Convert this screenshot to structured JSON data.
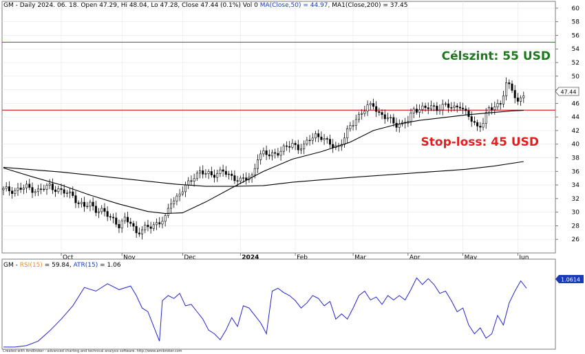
{
  "price_panel": {
    "header_prefix": "GM - Daily 2024. 06. 18. Open 47.29, Hi 48.04, Lo 47.28, Close 47.44 (0.1%) Vol 0 ",
    "header_ma50": "MA(Close,50) = 44.97, ",
    "header_ma200": "MA1(Close,200) = 37.45",
    "target_label": "Célszint: 55 USD",
    "stop_label": "Stop-loss: 45 USD",
    "last_price_badge": "47.44"
  },
  "indicator_panel": {
    "header_prefix": "GM - ",
    "header_rsi": "RSI(15)",
    "header_rsi_val": " = 59.84, ",
    "header_atr": "ATR(15)",
    "header_atr_val": " = 1.06",
    "value_badge": "1.0614"
  },
  "footer": "Created with AmiBroker - advanced charting and technical analysis software. http://www.amibroker.com",
  "colors": {
    "candle": "#000000",
    "ma": "#000000",
    "target_line": "#1a7a1a",
    "stop_line": "#e02020",
    "rsi_line": "#2222cc",
    "atr_badge": "#1a3ab8",
    "grid": "#e6e6e6"
  },
  "chart_data": [
    {
      "type": "candlestick",
      "title": "GM - Daily",
      "ylim": [
        24,
        61
      ],
      "y_ticks": [
        26,
        28,
        30,
        32,
        34,
        36,
        38,
        40,
        42,
        44,
        46,
        48,
        50,
        52,
        54,
        56,
        58,
        60
      ],
      "x_tick_labels": [
        "Oct",
        "Nov",
        "Dec",
        "2024",
        "Feb",
        "Mar",
        "Apr",
        "May",
        "Jun"
      ],
      "horizontal_lines": [
        {
          "name": "Célszint",
          "value": 55
        },
        {
          "name": "Stop-loss",
          "value": 45
        }
      ],
      "close_points": [
        [
          0,
          33.3
        ],
        [
          4,
          33.2
        ],
        [
          8,
          33.7
        ],
        [
          12,
          33.1
        ],
        [
          16,
          33.9
        ],
        [
          20,
          33.0
        ],
        [
          24,
          32.6
        ],
        [
          26,
          31.2
        ],
        [
          28,
          30.8
        ],
        [
          30,
          31.3
        ],
        [
          32,
          30.4
        ],
        [
          34,
          30.1
        ],
        [
          36,
          29.6
        ],
        [
          38,
          29.0
        ],
        [
          40,
          28.0
        ],
        [
          42,
          28.8
        ],
        [
          44,
          28.6
        ],
        [
          46,
          27.0
        ],
        [
          48,
          27.3
        ],
        [
          50,
          27.8
        ],
        [
          52,
          28.2
        ],
        [
          54,
          28.5
        ],
        [
          56,
          29.0
        ],
        [
          58,
          31.6
        ],
        [
          60,
          32.2
        ],
        [
          62,
          33.2
        ],
        [
          64,
          34.2
        ],
        [
          66,
          35.4
        ],
        [
          68,
          35.9
        ],
        [
          70,
          35.6
        ],
        [
          72,
          35.5
        ],
        [
          74,
          35.8
        ],
        [
          76,
          36.0
        ],
        [
          78,
          35.3
        ],
        [
          80,
          35.1
        ],
        [
          82,
          34.7
        ],
        [
          84,
          34.9
        ],
        [
          86,
          35.2
        ],
        [
          88,
          38.2
        ],
        [
          90,
          38.6
        ],
        [
          92,
          38.4
        ],
        [
          94,
          38.7
        ],
        [
          96,
          39.0
        ],
        [
          98,
          39.5
        ],
        [
          100,
          40.1
        ],
        [
          102,
          39.5
        ],
        [
          104,
          39.6
        ],
        [
          106,
          40.8
        ],
        [
          108,
          41.4
        ],
        [
          110,
          41.0
        ],
        [
          112,
          40.2
        ],
        [
          114,
          39.9
        ],
        [
          116,
          39.6
        ],
        [
          118,
          40.9
        ],
        [
          120,
          42.6
        ],
        [
          122,
          43.8
        ],
        [
          124,
          44.6
        ],
        [
          126,
          45.4
        ],
        [
          128,
          45.9
        ],
        [
          130,
          44.5
        ],
        [
          132,
          43.9
        ],
        [
          134,
          43.5
        ],
        [
          136,
          43.0
        ],
        [
          138,
          42.9
        ],
        [
          140,
          43.4
        ],
        [
          142,
          45.1
        ],
        [
          144,
          45.3
        ],
        [
          146,
          45.2
        ],
        [
          148,
          45.5
        ],
        [
          150,
          45.3
        ],
        [
          152,
          45.6
        ],
        [
          154,
          45.5
        ],
        [
          156,
          45.4
        ],
        [
          158,
          45.8
        ],
        [
          160,
          44.4
        ],
        [
          162,
          43.6
        ],
        [
          164,
          42.6
        ],
        [
          166,
          43.2
        ],
        [
          168,
          45.1
        ],
        [
          170,
          45.6
        ],
        [
          172,
          46.1
        ],
        [
          174,
          48.7
        ],
        [
          176,
          48.1
        ],
        [
          178,
          46.2
        ],
        [
          180,
          47.4
        ]
      ],
      "ma50_points": [
        [
          0,
          36.5
        ],
        [
          10,
          35.2
        ],
        [
          20,
          34.0
        ],
        [
          30,
          32.5
        ],
        [
          40,
          31.2
        ],
        [
          50,
          30.1
        ],
        [
          56,
          29.8
        ],
        [
          62,
          29.9
        ],
        [
          70,
          31.5
        ],
        [
          80,
          33.8
        ],
        [
          90,
          36.0
        ],
        [
          100,
          37.8
        ],
        [
          110,
          38.9
        ],
        [
          120,
          40.3
        ],
        [
          128,
          42.0
        ],
        [
          136,
          42.9
        ],
        [
          144,
          43.5
        ],
        [
          152,
          43.9
        ],
        [
          160,
          44.3
        ],
        [
          168,
          44.6
        ],
        [
          176,
          44.9
        ],
        [
          180,
          44.97
        ]
      ],
      "ma200_points": [
        [
          0,
          36.6
        ],
        [
          20,
          35.9
        ],
        [
          40,
          35.0
        ],
        [
          60,
          34.1
        ],
        [
          70,
          33.8
        ],
        [
          80,
          33.8
        ],
        [
          90,
          33.9
        ],
        [
          100,
          34.4
        ],
        [
          120,
          35.1
        ],
        [
          140,
          35.7
        ],
        [
          160,
          36.3
        ],
        [
          170,
          36.8
        ],
        [
          180,
          37.45
        ]
      ]
    },
    {
      "type": "line",
      "title": "RSI(15) / ATR(15)",
      "ylim": [
        0,
        1
      ],
      "series": [
        {
          "name": "RSI(15)",
          "points": [
            [
              0,
              0.02
            ],
            [
              4,
              0.02
            ],
            [
              8,
              0.04
            ],
            [
              12,
              0.1
            ],
            [
              16,
              0.24
            ],
            [
              20,
              0.4
            ],
            [
              24,
              0.58
            ],
            [
              28,
              0.83
            ],
            [
              32,
              0.78
            ],
            [
              36,
              0.88
            ],
            [
              40,
              0.8
            ],
            [
              44,
              0.85
            ],
            [
              46,
              0.72
            ],
            [
              48,
              0.55
            ],
            [
              50,
              0.5
            ],
            [
              52,
              0.3
            ],
            [
              54,
              0.1
            ],
            [
              55,
              0.65
            ],
            [
              57,
              0.72
            ],
            [
              59,
              0.68
            ],
            [
              61,
              0.75
            ],
            [
              63,
              0.58
            ],
            [
              65,
              0.6
            ],
            [
              67,
              0.5
            ],
            [
              69,
              0.4
            ],
            [
              71,
              0.25
            ],
            [
              73,
              0.2
            ],
            [
              75,
              0.12
            ],
            [
              77,
              0.25
            ],
            [
              79,
              0.42
            ],
            [
              81,
              0.3
            ],
            [
              83,
              0.58
            ],
            [
              85,
              0.55
            ],
            [
              87,
              0.45
            ],
            [
              89,
              0.35
            ],
            [
              91,
              0.2
            ],
            [
              93,
              0.78
            ],
            [
              95,
              0.82
            ],
            [
              97,
              0.76
            ],
            [
              99,
              0.72
            ],
            [
              101,
              0.65
            ],
            [
              103,
              0.55
            ],
            [
              105,
              0.62
            ],
            [
              107,
              0.72
            ],
            [
              109,
              0.68
            ],
            [
              111,
              0.58
            ],
            [
              113,
              0.64
            ],
            [
              115,
              0.4
            ],
            [
              117,
              0.47
            ],
            [
              119,
              0.4
            ],
            [
              121,
              0.55
            ],
            [
              123,
              0.72
            ],
            [
              125,
              0.78
            ],
            [
              127,
              0.66
            ],
            [
              129,
              0.7
            ],
            [
              131,
              0.6
            ],
            [
              133,
              0.72
            ],
            [
              135,
              0.66
            ],
            [
              137,
              0.72
            ],
            [
              139,
              0.66
            ],
            [
              141,
              0.8
            ],
            [
              143,
              0.96
            ],
            [
              145,
              0.87
            ],
            [
              147,
              0.95
            ],
            [
              149,
              0.87
            ],
            [
              151,
              0.75
            ],
            [
              153,
              0.78
            ],
            [
              155,
              0.65
            ],
            [
              157,
              0.5
            ],
            [
              159,
              0.55
            ],
            [
              161,
              0.32
            ],
            [
              163,
              0.2
            ],
            [
              165,
              0.28
            ],
            [
              167,
              0.14
            ],
            [
              169,
              0.2
            ],
            [
              171,
              0.45
            ],
            [
              173,
              0.32
            ],
            [
              175,
              0.62
            ],
            [
              177,
              0.78
            ],
            [
              179,
              0.92
            ],
            [
              181,
              0.82
            ]
          ]
        }
      ]
    }
  ]
}
